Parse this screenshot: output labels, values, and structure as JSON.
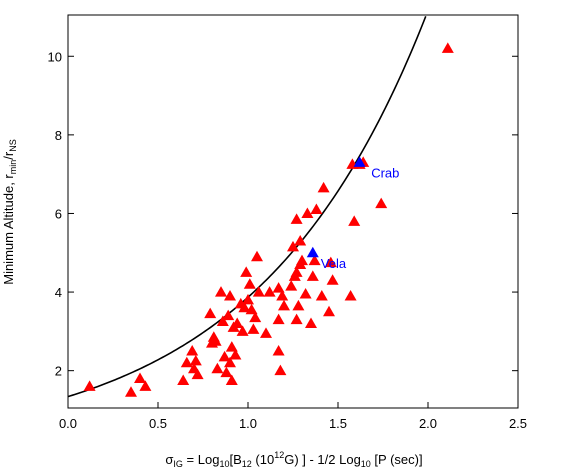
{
  "chart_data": {
    "type": "scatter",
    "title": "",
    "xlabel": {
      "sigma": "σ",
      "sigma_sub": "IG",
      "p1": " = Log",
      "sub1": "10",
      "p2": "[B",
      "sub2": "12",
      "p3": " (10",
      "sup1": "12",
      "p4": "G) ] - 1/2 Log",
      "sub3": "10",
      "p5": " [P (sec)]"
    },
    "ylabel": {
      "p1": "Minimum Altitude, r",
      "sub1": "min",
      "p2": "/r",
      "sub2": "NS"
    },
    "xlim": [
      0.0,
      2.5
    ],
    "ylim": [
      1.05,
      11.05
    ],
    "xticks": [
      0.0,
      0.5,
      1.0,
      1.5,
      2.0,
      2.5
    ],
    "xtick_labels": [
      "0.0",
      "0.5",
      "1.0",
      "1.5",
      "2.0",
      "2.5"
    ],
    "yticks": [
      2,
      4,
      6,
      8,
      10
    ],
    "ytick_labels": [
      "2",
      "4",
      "6",
      "8",
      "10"
    ],
    "grid": false,
    "colors": {
      "pulsars": "#ff0000",
      "highlight": "#0000ff",
      "curve": "#000000"
    },
    "series": [
      {
        "marker": "triangle",
        "points": [
          [
            0.12,
            1.6
          ],
          [
            0.35,
            1.45
          ],
          [
            0.4,
            1.8
          ],
          [
            0.43,
            1.6
          ],
          [
            0.64,
            1.75
          ],
          [
            0.66,
            2.2
          ],
          [
            0.69,
            2.5
          ],
          [
            0.7,
            2.05
          ],
          [
            0.71,
            2.25
          ],
          [
            0.72,
            1.9
          ],
          [
            0.79,
            3.45
          ],
          [
            0.8,
            2.7
          ],
          [
            0.81,
            2.85
          ],
          [
            0.82,
            2.75
          ],
          [
            0.83,
            2.05
          ],
          [
            0.85,
            4.0
          ],
          [
            0.86,
            3.25
          ],
          [
            0.87,
            2.35
          ],
          [
            0.88,
            1.95
          ],
          [
            0.89,
            3.4
          ],
          [
            0.9,
            3.9
          ],
          [
            0.9,
            2.2
          ],
          [
            0.91,
            2.6
          ],
          [
            0.91,
            1.75
          ],
          [
            0.92,
            3.1
          ],
          [
            0.93,
            2.4
          ],
          [
            0.94,
            3.2
          ],
          [
            0.96,
            3.7
          ],
          [
            0.97,
            3.0
          ],
          [
            0.98,
            3.6
          ],
          [
            0.99,
            4.5
          ],
          [
            1.0,
            3.8
          ],
          [
            1.01,
            4.2
          ],
          [
            1.02,
            3.55
          ],
          [
            1.03,
            3.05
          ],
          [
            1.04,
            3.35
          ],
          [
            1.05,
            4.9
          ],
          [
            1.06,
            4.0
          ],
          [
            1.1,
            2.95
          ],
          [
            1.12,
            4.0
          ],
          [
            1.17,
            4.1
          ],
          [
            1.17,
            3.3
          ],
          [
            1.17,
            2.5
          ],
          [
            1.18,
            2.0
          ],
          [
            1.19,
            3.9
          ],
          [
            1.2,
            3.65
          ],
          [
            1.24,
            4.15
          ],
          [
            1.25,
            5.15
          ],
          [
            1.26,
            4.4
          ],
          [
            1.27,
            4.5
          ],
          [
            1.27,
            3.3
          ],
          [
            1.27,
            5.85
          ],
          [
            1.28,
            3.65
          ],
          [
            1.29,
            4.7
          ],
          [
            1.29,
            5.3
          ],
          [
            1.3,
            4.8
          ],
          [
            1.32,
            3.95
          ],
          [
            1.33,
            6.0
          ],
          [
            1.35,
            3.2
          ],
          [
            1.36,
            4.4
          ],
          [
            1.37,
            4.8
          ],
          [
            1.38,
            6.1
          ],
          [
            1.41,
            3.9
          ],
          [
            1.42,
            6.65
          ],
          [
            1.45,
            3.5
          ],
          [
            1.46,
            4.75
          ],
          [
            1.47,
            4.3
          ],
          [
            1.57,
            3.9
          ],
          [
            1.58,
            7.25
          ],
          [
            1.59,
            5.8
          ],
          [
            1.62,
            7.25
          ],
          [
            1.64,
            7.3
          ],
          [
            1.74,
            6.25
          ],
          [
            2.11,
            10.2
          ]
        ]
      },
      {
        "marker": "triangle",
        "points": [
          [
            1.36,
            5.0
          ],
          [
            1.62,
            7.3
          ]
        ]
      }
    ],
    "fit_curve": {
      "form": "exponential"
    },
    "annotations": [
      {
        "text": "Crab",
        "x": 1.64,
        "y": 7.3
      },
      {
        "text": "Vela",
        "x": 1.36,
        "y": 5.0
      }
    ]
  }
}
